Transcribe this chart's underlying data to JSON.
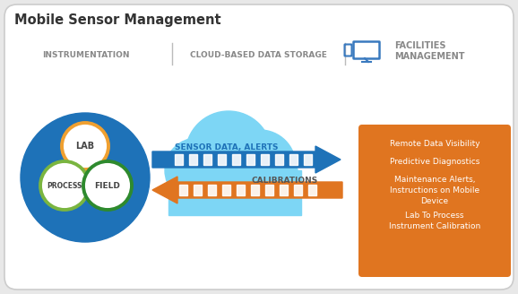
{
  "title": "Mobile Sensor Management",
  "border_color": "#cccccc",
  "section_labels": [
    "INSTRUMENTATION",
    "CLOUD-BASED DATA STORAGE",
    "FACILITIES\nMANAGEMENT"
  ],
  "section_label_color": "#888888",
  "divider_color": "#bbbbbb",
  "circles_bg": "#1e72b8",
  "circle_lab_outline": "#f0a030",
  "circle_process_outline": "#7ab540",
  "circle_field_outline": "#2e8a2e",
  "cloud_color": "#7dd6f5",
  "arrow_forward_color": "#1e72b8",
  "arrow_back_color": "#e07520",
  "arrow_label_forward": "SENSOR DATA, ALERTS",
  "arrow_label_back": "CALIBRATIONS",
  "orange_box_color": "#e07520",
  "orange_box_text": [
    "Remote Data Visibility",
    "Predictive Diagnostics",
    "Maintenance Alerts,\nInstructions on Mobile\nDevice",
    "Lab To Process\nInstrument Calibration"
  ],
  "orange_box_text_color": "#ffffff",
  "facilities_icon_color": "#3a7abf",
  "title_color": "#333333",
  "circle_text_color": "#444444"
}
